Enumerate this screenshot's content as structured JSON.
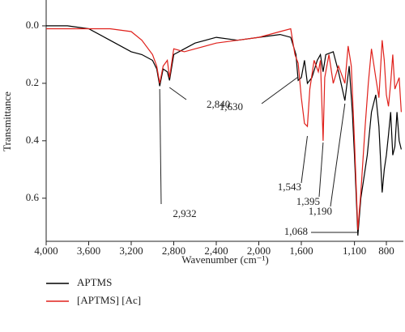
{
  "chart_data": {
    "type": "line",
    "xlabel": "Wavenumber (cm⁻¹)",
    "ylabel": "Transmittance",
    "xlim": [
      4000,
      640
    ],
    "ylim": [
      -0.09,
      0.75
    ],
    "y_inverted": true,
    "xticks": [
      {
        "value": 4000,
        "label": "4,000"
      },
      {
        "value": 3600,
        "label": "3,600"
      },
      {
        "value": 3200,
        "label": "3,200"
      },
      {
        "value": 2800,
        "label": "2,800"
      },
      {
        "value": 2400,
        "label": "2,400"
      },
      {
        "value": 2000,
        "label": "2,000"
      },
      {
        "value": 1600,
        "label": "1,600"
      },
      {
        "value": 1100,
        "label": "1,100"
      },
      800
    ],
    "yticks": [
      {
        "value": 0,
        "label": "0.0"
      },
      0.2,
      0.4,
      0.6
    ],
    "legend": "bottom-left",
    "series": [
      {
        "name": "APTMS",
        "color": "#000000",
        "x": [
          4000,
          3800,
          3600,
          3400,
          3200,
          3100,
          3000,
          2960,
          2932,
          2900,
          2860,
          2840,
          2800,
          2700,
          2600,
          2400,
          2200,
          2000,
          1800,
          1700,
          1650,
          1630,
          1600,
          1570,
          1543,
          1500,
          1450,
          1420,
          1395,
          1370,
          1300,
          1250,
          1190,
          1150,
          1120,
          1100,
          1068,
          1040,
          1000,
          980,
          940,
          900,
          870,
          840,
          820,
          800,
          780,
          760,
          740,
          720,
          700,
          680,
          660
        ],
        "values": [
          0.0,
          0.0,
          0.01,
          0.05,
          0.09,
          0.1,
          0.12,
          0.15,
          0.21,
          0.15,
          0.16,
          0.19,
          0.1,
          0.08,
          0.06,
          0.04,
          0.05,
          0.04,
          0.03,
          0.04,
          0.1,
          0.19,
          0.18,
          0.12,
          0.2,
          0.18,
          0.12,
          0.1,
          0.16,
          0.1,
          0.09,
          0.16,
          0.26,
          0.14,
          0.3,
          0.45,
          0.73,
          0.6,
          0.5,
          0.45,
          0.3,
          0.24,
          0.35,
          0.58,
          0.5,
          0.45,
          0.38,
          0.3,
          0.45,
          0.42,
          0.3,
          0.4,
          0.43
        ]
      },
      {
        "name": "[APTMS] [Ac]",
        "color": "#e0201b",
        "x": [
          4000,
          3800,
          3600,
          3400,
          3200,
          3100,
          3000,
          2960,
          2932,
          2900,
          2860,
          2840,
          2800,
          2700,
          2600,
          2400,
          2200,
          2000,
          1800,
          1700,
          1660,
          1630,
          1600,
          1570,
          1543,
          1520,
          1480,
          1440,
          1420,
          1395,
          1380,
          1340,
          1300,
          1250,
          1190,
          1160,
          1130,
          1100,
          1068,
          1040,
          1000,
          970,
          940,
          900,
          870,
          840,
          820,
          800,
          780,
          760,
          740,
          720,
          700,
          680,
          660
        ],
        "values": [
          0.01,
          0.01,
          0.01,
          0.01,
          0.02,
          0.05,
          0.1,
          0.14,
          0.2,
          0.14,
          0.12,
          0.18,
          0.08,
          0.09,
          0.08,
          0.06,
          0.05,
          0.04,
          0.02,
          0.01,
          0.1,
          0.13,
          0.25,
          0.34,
          0.35,
          0.22,
          0.12,
          0.16,
          0.12,
          0.4,
          0.18,
          0.1,
          0.2,
          0.14,
          0.2,
          0.07,
          0.14,
          0.4,
          0.71,
          0.58,
          0.35,
          0.2,
          0.08,
          0.18,
          0.25,
          0.05,
          0.12,
          0.24,
          0.28,
          0.2,
          0.1,
          0.22,
          0.2,
          0.18,
          0.3
        ]
      }
    ],
    "annotations": [
      {
        "label": "2,932",
        "value": 2932
      },
      {
        "label": "2,840",
        "value": 2840
      },
      {
        "label": "1,630",
        "value": 1630
      },
      {
        "label": "1,543",
        "value": 1543
      },
      {
        "label": "1,395",
        "value": 1395
      },
      {
        "label": "1,190",
        "value": 1190
      },
      {
        "label": "1,068",
        "value": 1068
      }
    ]
  }
}
